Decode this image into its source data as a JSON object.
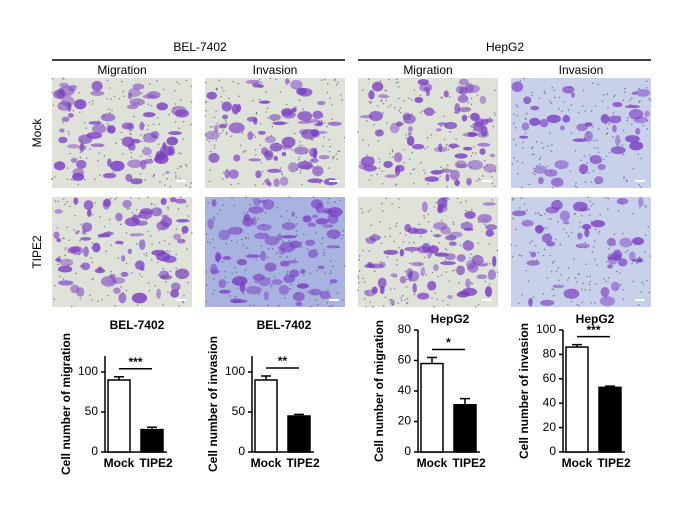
{
  "figure": {
    "groups": [
      "BEL-7402",
      "HepG2"
    ],
    "columns": [
      "Migration",
      "Invasion",
      "Migration",
      "Invasion"
    ],
    "rows": [
      "Mock",
      "TIPE2"
    ]
  },
  "chart_data": [
    {
      "type": "bar",
      "title": "BEL-7402",
      "y_label": "Cell number of migration",
      "categories": [
        "Mock",
        "TIPE2"
      ],
      "values": [
        90,
        28
      ],
      "errors": [
        4,
        3
      ],
      "colors": [
        "#ffffff",
        "#000000"
      ],
      "ylim": [
        0,
        120
      ],
      "yticks": [
        0,
        50,
        100
      ],
      "annotation": "***"
    },
    {
      "type": "bar",
      "title": "BEL-7402",
      "y_label": "Cell number of invasion",
      "categories": [
        "Mock",
        "TIPE2"
      ],
      "values": [
        90,
        45
      ],
      "errors": [
        5,
        2
      ],
      "colors": [
        "#ffffff",
        "#000000"
      ],
      "ylim": [
        0,
        120
      ],
      "yticks": [
        0,
        50,
        100
      ],
      "annotation": "**"
    },
    {
      "type": "bar",
      "title": "HepG2",
      "y_label": "Cell number of migration",
      "categories": [
        "Mock",
        "TIPE2"
      ],
      "values": [
        58,
        31
      ],
      "errors": [
        4,
        4
      ],
      "colors": [
        "#ffffff",
        "#000000"
      ],
      "ylim": [
        0,
        80
      ],
      "yticks": [
        0,
        20,
        40,
        60,
        80
      ],
      "annotation": "*"
    },
    {
      "type": "bar",
      "title": "HepG2",
      "y_label": "Cell number of invasion",
      "categories": [
        "Mock",
        "TIPE2"
      ],
      "values": [
        86,
        53
      ],
      "errors": [
        2,
        1
      ],
      "colors": [
        "#ffffff",
        "#000000"
      ],
      "ylim": [
        0,
        100
      ],
      "yticks": [
        0,
        20,
        40,
        60,
        80,
        100
      ],
      "annotation": "***"
    }
  ]
}
